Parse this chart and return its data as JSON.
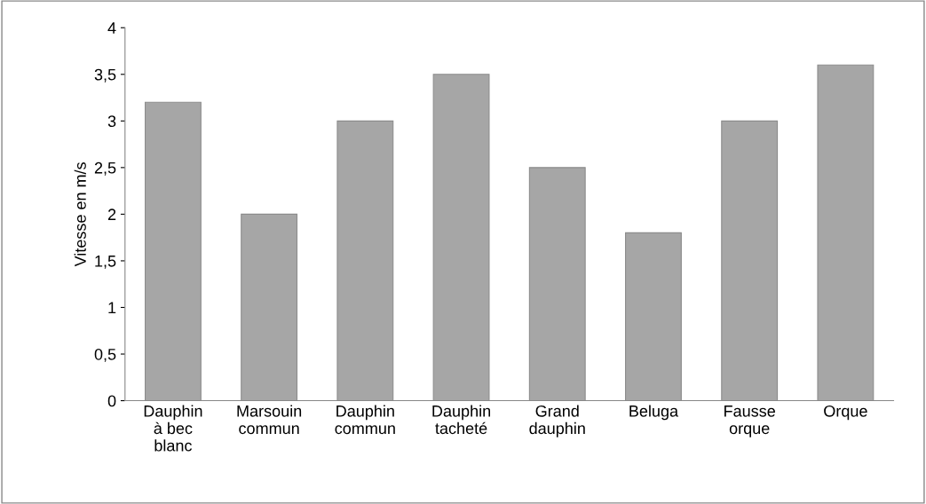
{
  "chart_data": {
    "type": "bar",
    "ylabel": "Vitesse en m/s",
    "categories": [
      "Dauphin à bec blanc",
      "Marsouin commun",
      "Dauphin commun",
      "Dauphin tacheté",
      "Grand dauphin",
      "Beluga",
      "Fausse orque",
      "Orque"
    ],
    "values": [
      3.2,
      2.0,
      3.0,
      3.5,
      2.5,
      1.8,
      3.0,
      3.6
    ],
    "color": "#a6a6a6",
    "ylim": [
      0,
      4
    ],
    "yticks": [
      0,
      {
        "value": 0.5,
        "label": "0,5"
      },
      1,
      {
        "value": 1.5,
        "label": "1,5"
      },
      2,
      {
        "value": 2.5,
        "label": "2,5"
      },
      3,
      {
        "value": 3.5,
        "label": "3,5"
      },
      4
    ],
    "grid": false,
    "legend": false
  }
}
